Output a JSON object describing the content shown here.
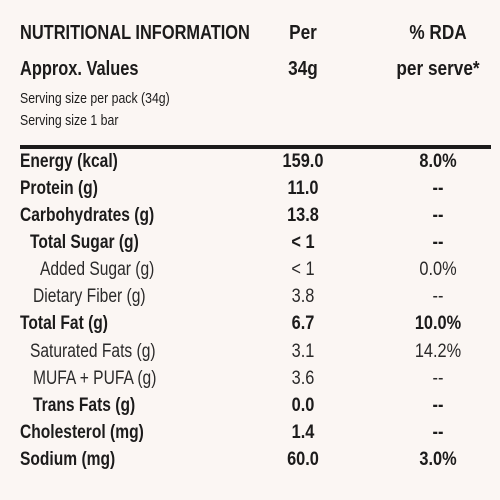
{
  "header": {
    "col1_line1": "NUTRITIONAL INFORMATION",
    "col1_line2": "Approx. Values",
    "col2_line1": "Per",
    "col2_line2": "34g",
    "col3_line1": "% RDA",
    "col3_line2": "per serve*",
    "serving_pack": "Serving size per pack (34g)",
    "serving_bar": "Serving size 1 bar"
  },
  "rows": [
    {
      "name": "Energy (kcal)",
      "per": "159.0",
      "rda": "8.0%"
    },
    {
      "name": "Protein (g)",
      "per": "11.0",
      "rda": "--"
    },
    {
      "name": "Carbohydrates (g)",
      "per": "13.8",
      "rda": "--"
    },
    {
      "name": "Total Sugar (g)",
      "per": "< 1",
      "rda": "--"
    },
    {
      "name": "Added Sugar (g)",
      "per": "< 1",
      "rda": "0.0%"
    },
    {
      "name": "Dietary Fiber (g)",
      "per": "3.8",
      "rda": "--"
    },
    {
      "name": "Total Fat (g)",
      "per": "6.7",
      "rda": "10.0%"
    },
    {
      "name": "Saturated Fats (g)",
      "per": "3.1",
      "rda": "14.2%"
    },
    {
      "name": "MUFA + PUFA (g)",
      "per": "3.6",
      "rda": "--"
    },
    {
      "name": "Trans Fats (g)",
      "per": "0.0",
      "rda": "--"
    },
    {
      "name": "Cholesterol (mg)",
      "per": "1.4",
      "rda": "--"
    },
    {
      "name": "Sodium (mg)",
      "per": "60.0",
      "rda": "3.0%"
    }
  ]
}
